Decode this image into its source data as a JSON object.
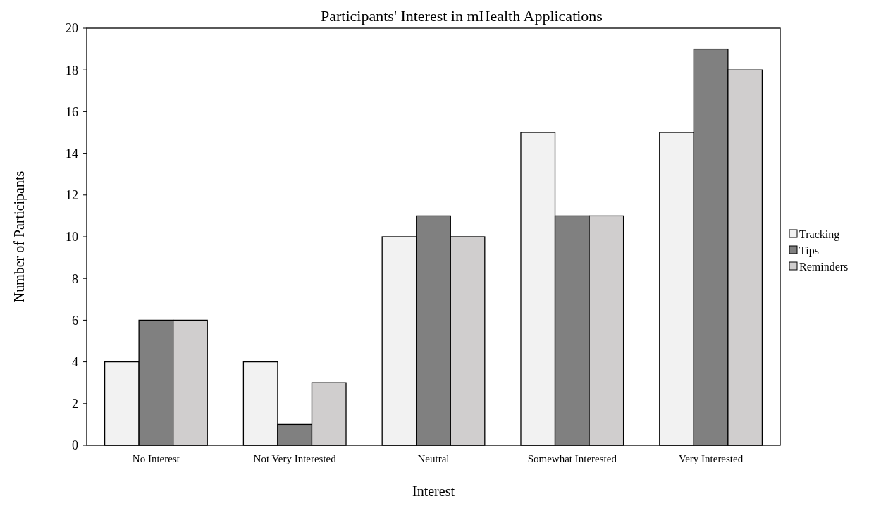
{
  "chart_data": {
    "type": "bar",
    "title": "Participants' Interest in mHealth Applications",
    "xlabel": "Interest",
    "ylabel": "Number of Participants",
    "categories": [
      "No Interest",
      "Not Very Interested",
      "Neutral",
      "Somewhat Interested",
      "Very Interested"
    ],
    "series": [
      {
        "name": "Tracking",
        "color": "#f2f2f2",
        "values": [
          4,
          4,
          10,
          15,
          15
        ]
      },
      {
        "name": "Tips",
        "color": "#808080",
        "values": [
          6,
          1,
          11,
          11,
          19
        ]
      },
      {
        "name": "Reminders",
        "color": "#d0cece",
        "values": [
          6,
          3,
          10,
          11,
          18
        ]
      }
    ],
    "ylim": [
      0,
      20
    ],
    "yticks": [
      0,
      2,
      4,
      6,
      8,
      10,
      12,
      14,
      16,
      18,
      20
    ],
    "grid": false,
    "legend": "right"
  }
}
